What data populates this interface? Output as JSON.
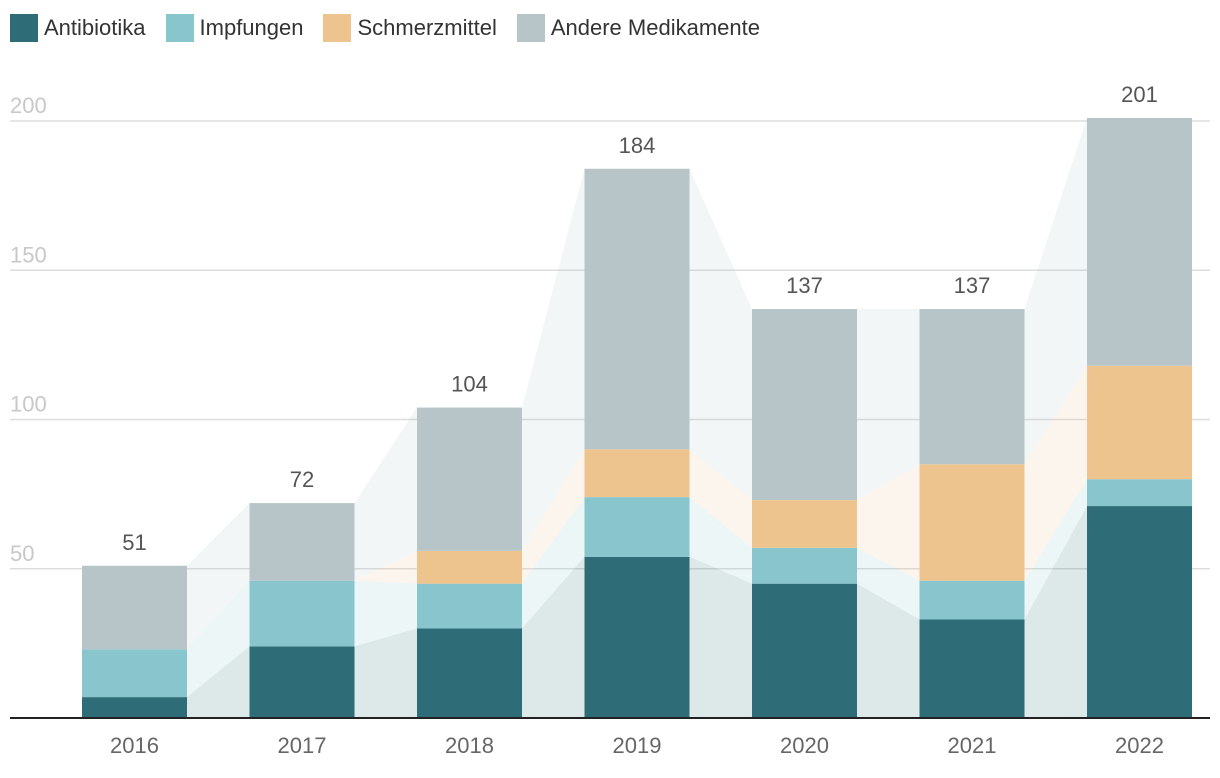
{
  "chart_data": {
    "type": "bar",
    "stacked": true,
    "categories": [
      "2016",
      "2017",
      "2018",
      "2019",
      "2020",
      "2021",
      "2022"
    ],
    "series": [
      {
        "name": "Antibiotika",
        "color": "#2e6d77",
        "values": [
          7,
          24,
          30,
          54,
          45,
          33,
          71
        ]
      },
      {
        "name": "Impfungen",
        "color": "#89c5cc",
        "values": [
          16,
          22,
          15,
          20,
          12,
          13,
          9
        ]
      },
      {
        "name": "Schmerzmittel",
        "color": "#edc38e",
        "values": [
          0,
          0,
          11,
          16,
          16,
          39,
          38
        ]
      },
      {
        "name": "Andere Medikamente",
        "color": "#b7c5c8",
        "values": [
          28,
          26,
          48,
          94,
          64,
          52,
          83
        ]
      }
    ],
    "totals": [
      51,
      72,
      104,
      184,
      137,
      137,
      201
    ],
    "yticks": [
      50,
      100,
      150,
      200
    ],
    "ylim": [
      0,
      200
    ],
    "title": "",
    "xlabel": "",
    "ylabel": "",
    "legend": "top-left"
  }
}
